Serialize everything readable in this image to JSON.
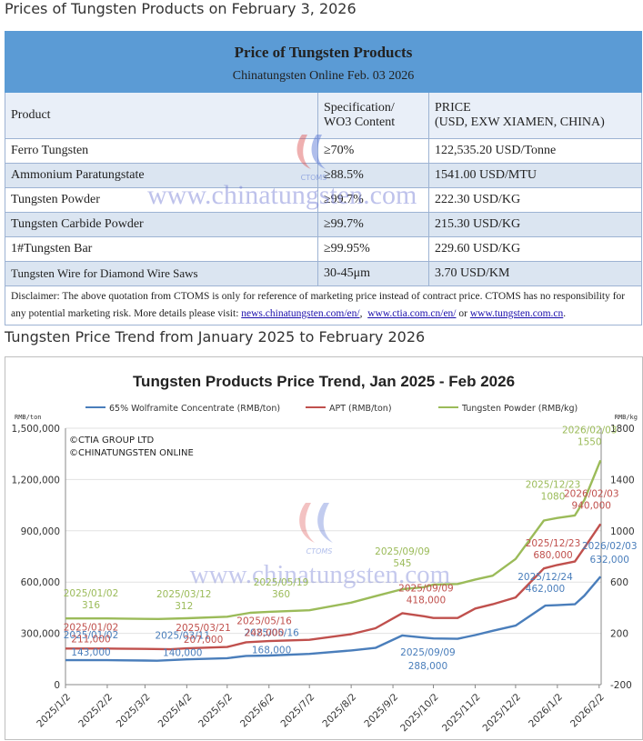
{
  "headings": {
    "prices": "Prices of Tungsten Products on February 3, 2026",
    "trend": "Tungsten Price Trend from January 2025 to February 2026"
  },
  "table": {
    "title": "Price of Tungsten Products",
    "subtitle": "Chinatungsten Online Feb. 03 2026",
    "col_product": "Product",
    "col_spec_line1": "Specification/",
    "col_spec_line2": "WO3 Content",
    "col_price_line1": "PRICE",
    "col_price_line2": "(USD, EXW XIAMEN, CHINA)",
    "rows": [
      {
        "product": "Ferro Tungsten",
        "spec": "≥70%",
        "price": "122,535.20 USD/Tonne"
      },
      {
        "product": "Ammonium Paratungstate",
        "spec": "≥88.5%",
        "price": "1541.00 USD/MTU"
      },
      {
        "product": "Tungsten Powder",
        "spec": "≥99.7%",
        "price": "222.30 USD/KG"
      },
      {
        "product": "Tungsten Carbide Powder",
        "spec": "≥99.7%",
        "price": "215.30 USD/KG"
      },
      {
        "product": "1#Tungsten Bar",
        "spec": "≥99.95%",
        "price": "229.60 USD/KG"
      },
      {
        "product": "Tungsten Wire for Diamond Wire Saws",
        "spec": "30-45μm",
        "price": "3.70 USD/KM"
      }
    ],
    "disclaimer_text": "Disclaimer: The above quotation from CTOMS is only for reference of marketing price instead of contract price. CTOMS has no responsibility for any potential marketing risk. More details please visit: ",
    "link1": "news.chinatungsten.com/en/",
    "link2": "www.ctia.com.cn/en/",
    "or_text": " or ",
    "link3": "www.tungsten.com.cn"
  },
  "watermark": {
    "text": "www.chinatungsten.com",
    "logo_text": "CTOMS"
  },
  "chart_data": {
    "type": "line",
    "title": "Tungsten Products Price Trend, Jan 2025 - Feb 2026",
    "y_left_unit": "RMB/ton",
    "y_right_unit": "RMB/kg",
    "y_left_range": [
      0,
      1500000
    ],
    "y_right_range": [
      -200,
      1800
    ],
    "y_left_ticks": [
      "0",
      "300,000",
      "600,000",
      "900,000",
      "1,200,000",
      "1,500,000"
    ],
    "y_right_ticks": [
      "-200",
      "200",
      "600",
      "1000",
      "1400",
      "1800"
    ],
    "x_ticks": [
      "2025/1/2",
      "2025/2/2",
      "2025/3/2",
      "2025/4/2",
      "2025/5/2",
      "2025/6/2",
      "2025/7/2",
      "2025/8/2",
      "2025/9/2",
      "2025/10/2",
      "2025/11/2",
      "2025/12/2",
      "2026/1/2",
      "2026/2/2"
    ],
    "copyright": [
      "©CTIA GROUP LTD",
      "©CHINATUNGSTEN ONLINE"
    ],
    "grid": true,
    "legend_position": "top",
    "series": [
      {
        "name": "65% Wolframite Concentrate (RMB/ton)",
        "axis": "left",
        "color": "#4a7ebb",
        "points": [
          [
            "2025/1/2",
            143000
          ],
          [
            "2025/2/2",
            143000
          ],
          [
            "2025/3/2",
            141000
          ],
          [
            "2025/3/11",
            140000
          ],
          [
            "2025/4/2",
            148000
          ],
          [
            "2025/5/2",
            155000
          ],
          [
            "2025/5/16",
            168000
          ],
          [
            "2025/6/2",
            170000
          ],
          [
            "2025/7/2",
            180000
          ],
          [
            "2025/8/2",
            200000
          ],
          [
            "2025/8/20",
            215000
          ],
          [
            "2025/9/9",
            288000
          ],
          [
            "2025/9/25",
            275000
          ],
          [
            "2025/10/2",
            270000
          ],
          [
            "2025/10/20",
            268000
          ],
          [
            "2025/11/2",
            290000
          ],
          [
            "2025/11/15",
            315000
          ],
          [
            "2025/12/2",
            345000
          ],
          [
            "2025/12/24",
            462000
          ],
          [
            "2026/1/2",
            465000
          ],
          [
            "2026/1/15",
            470000
          ],
          [
            "2026/1/22",
            520000
          ],
          [
            "2026/2/3",
            632000
          ]
        ]
      },
      {
        "name": "APT (RMB/ton)",
        "axis": "left",
        "color": "#c0504d",
        "points": [
          [
            "2025/1/2",
            211000
          ],
          [
            "2025/2/2",
            211000
          ],
          [
            "2025/3/2",
            209000
          ],
          [
            "2025/3/21",
            207000
          ],
          [
            "2025/4/2",
            212000
          ],
          [
            "2025/5/2",
            220000
          ],
          [
            "2025/5/16",
            248000
          ],
          [
            "2025/6/2",
            255000
          ],
          [
            "2025/7/2",
            262000
          ],
          [
            "2025/8/2",
            295000
          ],
          [
            "2025/8/20",
            330000
          ],
          [
            "2025/9/9",
            418000
          ],
          [
            "2025/9/25",
            400000
          ],
          [
            "2025/10/2",
            390000
          ],
          [
            "2025/10/20",
            390000
          ],
          [
            "2025/11/2",
            445000
          ],
          [
            "2025/11/15",
            470000
          ],
          [
            "2025/12/2",
            510000
          ],
          [
            "2025/12/23",
            680000
          ],
          [
            "2026/1/2",
            700000
          ],
          [
            "2026/1/15",
            720000
          ],
          [
            "2026/1/22",
            800000
          ],
          [
            "2026/2/3",
            940000
          ]
        ]
      },
      {
        "name": "Tungsten Powder (RMB/kg)",
        "axis": "right",
        "color": "#9bbb59",
        "points": [
          [
            "2025/1/2",
            316
          ],
          [
            "2025/2/2",
            316
          ],
          [
            "2025/3/2",
            313
          ],
          [
            "2025/3/12",
            312
          ],
          [
            "2025/4/2",
            318
          ],
          [
            "2025/5/2",
            330
          ],
          [
            "2025/5/19",
            360
          ],
          [
            "2025/6/2",
            368
          ],
          [
            "2025/7/2",
            380
          ],
          [
            "2025/8/2",
            440
          ],
          [
            "2025/8/20",
            490
          ],
          [
            "2025/9/9",
            545
          ],
          [
            "2025/9/25",
            560
          ],
          [
            "2025/10/2",
            580
          ],
          [
            "2025/10/20",
            585
          ],
          [
            "2025/11/2",
            620
          ],
          [
            "2025/11/15",
            650
          ],
          [
            "2025/12/2",
            780
          ],
          [
            "2025/12/23",
            1080
          ],
          [
            "2026/1/2",
            1100
          ],
          [
            "2026/1/15",
            1120
          ],
          [
            "2026/1/22",
            1240
          ],
          [
            "2026/2/3",
            1550
          ]
        ]
      }
    ],
    "annotations": [
      {
        "series": 0,
        "date": "2025/01/02",
        "value": "143,000"
      },
      {
        "series": 0,
        "date": "2025/03/11",
        "value": "140,000"
      },
      {
        "series": 0,
        "date": "2025/05/16",
        "value": "168,000"
      },
      {
        "series": 0,
        "date": "2025/09/09",
        "value": "288,000"
      },
      {
        "series": 0,
        "date": "2025/12/24",
        "value": "462,000"
      },
      {
        "series": 0,
        "date": "2026/02/03",
        "value": "632,000"
      },
      {
        "series": 1,
        "date": "2025/01/02",
        "value": "211,000"
      },
      {
        "series": 1,
        "date": "2025/03/21",
        "value": "207,000"
      },
      {
        "series": 1,
        "date": "2025/05/16",
        "value": "248,000"
      },
      {
        "series": 1,
        "date": "2025/09/09",
        "value": "418,000"
      },
      {
        "series": 1,
        "date": "2025/12/23",
        "value": "680,000"
      },
      {
        "series": 1,
        "date": "2026/02/03",
        "value": "940,000"
      },
      {
        "series": 2,
        "date": "2025/01/02",
        "value": "316"
      },
      {
        "series": 2,
        "date": "2025/03/12",
        "value": "312"
      },
      {
        "series": 2,
        "date": "2025/05/19",
        "value": "360"
      },
      {
        "series": 2,
        "date": "2025/09/09",
        "value": "545"
      },
      {
        "series": 2,
        "date": "2025/12/23",
        "value": "1080"
      },
      {
        "series": 2,
        "date": "2026/02/03",
        "value": "1550"
      }
    ]
  }
}
